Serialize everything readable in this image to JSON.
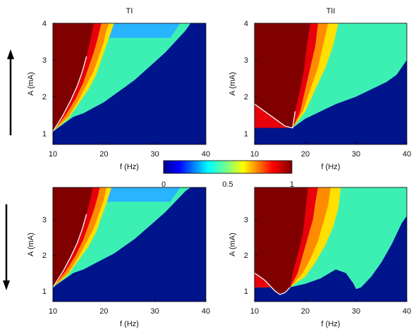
{
  "colors": {
    "background": "#00148c",
    "dark_red": "#800000",
    "red": "#e8000a",
    "orange": "#ff8c00",
    "yellow": "#ffe000",
    "cyan": "#3cf0b4",
    "light_blue": "#28b4ff",
    "boundary": "#f0f0f0"
  },
  "colorbar": {
    "colormap": "jet",
    "ticks": [
      "0",
      "0.5",
      "1"
    ],
    "tick_values": [
      0,
      0.5,
      1
    ]
  },
  "arrows": {
    "top_direction": "up",
    "bottom_direction": "down"
  },
  "chart_data": [
    {
      "type": "heatmap",
      "panel": "top-left",
      "title": "TI",
      "xlabel": "f (Hz)",
      "ylabel": "A (mA)",
      "xlim": [
        10,
        40
      ],
      "ylim": [
        0.7,
        4.0
      ],
      "xticks": [
        "10",
        "20",
        "30",
        "40"
      ],
      "yticks": [
        "1",
        "2",
        "3",
        "4"
      ],
      "regions": [
        {
          "value": 0.55,
          "color": "cyan",
          "boundary": [
            [
              10,
              1.05
            ],
            [
              12,
              1.25
            ],
            [
              14,
              1.45
            ],
            [
              16,
              1.55
            ],
            [
              18,
              1.7
            ],
            [
              20,
              1.85
            ],
            [
              22,
              2.05
            ],
            [
              24,
              2.25
            ],
            [
              26,
              2.45
            ],
            [
              28,
              2.7
            ],
            [
              30,
              2.95
            ],
            [
              32,
              3.2
            ],
            [
              34,
              3.5
            ],
            [
              36,
              3.8
            ],
            [
              37,
              4.0
            ]
          ]
        },
        {
          "value": 0.45,
          "color": "light_blue",
          "boundary": [
            [
              33,
              3.6
            ],
            [
              34.5,
              3.9
            ],
            [
              35,
              4.0
            ]
          ]
        },
        {
          "value": 0.72,
          "color": "yellow",
          "boundary": [
            [
              10,
              1.05
            ],
            [
              13,
              1.4
            ],
            [
              15,
              1.8
            ],
            [
              17,
              2.2
            ],
            [
              18.5,
              2.6
            ],
            [
              19.5,
              3.0
            ],
            [
              20.5,
              3.4
            ],
            [
              21.5,
              3.8
            ],
            [
              22,
              4.0
            ]
          ]
        },
        {
          "value": 0.82,
          "color": "orange",
          "boundary": [
            [
              10,
              1.05
            ],
            [
              13,
              1.45
            ],
            [
              15,
              1.9
            ],
            [
              16.5,
              2.3
            ],
            [
              18,
              2.7
            ],
            [
              19,
              3.1
            ],
            [
              20,
              3.5
            ],
            [
              20.5,
              3.8
            ],
            [
              21,
              4.0
            ]
          ]
        },
        {
          "value": 0.9,
          "color": "red",
          "boundary": [
            [
              10,
              1.05
            ],
            [
              12.5,
              1.5
            ],
            [
              14.5,
              1.95
            ],
            [
              16,
              2.4
            ],
            [
              17,
              2.8
            ],
            [
              18,
              3.2
            ],
            [
              18.8,
              3.6
            ],
            [
              19.5,
              4.0
            ]
          ]
        },
        {
          "value": 1.0,
          "color": "dark_red",
          "boundary": [
            [
              10,
              1.05
            ],
            [
              12,
              1.5
            ],
            [
              13.5,
              1.9
            ],
            [
              14.8,
              2.3
            ],
            [
              15.8,
              2.7
            ],
            [
              16.6,
              3.1
            ],
            [
              17.3,
              3.5
            ],
            [
              18,
              4.0
            ]
          ]
        }
      ]
    },
    {
      "type": "heatmap",
      "panel": "top-right",
      "title": "TII",
      "xlabel": "f (Hz)",
      "ylabel": "A (mA)",
      "xlim": [
        10,
        40
      ],
      "ylim": [
        0.7,
        4.0
      ],
      "xticks": [
        "10",
        "20",
        "30",
        "40"
      ],
      "yticks": [
        "1",
        "2",
        "3",
        "4"
      ],
      "regions": [
        {
          "value": 0.55,
          "color": "cyan",
          "boundary": [
            [
              10,
              1.8
            ],
            [
              12,
              1.6
            ],
            [
              14,
              1.4
            ],
            [
              16,
              1.2
            ],
            [
              17.5,
              1.15
            ],
            [
              20,
              1.4
            ],
            [
              23,
              1.6
            ],
            [
              26,
              1.8
            ],
            [
              30,
              2.0
            ],
            [
              33,
              2.2
            ],
            [
              36,
              2.4
            ],
            [
              38,
              2.6
            ],
            [
              39,
              2.8
            ],
            [
              40,
              3.0
            ]
          ]
        },
        {
          "value": 0.72,
          "color": "yellow",
          "boundary": [
            [
              17.5,
              1.15
            ],
            [
              20,
              1.6
            ],
            [
              22,
              2.2
            ],
            [
              24,
              2.8
            ],
            [
              25.5,
              3.4
            ],
            [
              26.5,
              4.0
            ]
          ]
        },
        {
          "value": 0.82,
          "color": "orange",
          "boundary": [
            [
              17.5,
              1.15
            ],
            [
              19.5,
              1.6
            ],
            [
              21,
              2.2
            ],
            [
              22.5,
              2.8
            ],
            [
              23.5,
              3.4
            ],
            [
              24.5,
              4.0
            ]
          ]
        },
        {
          "value": 0.9,
          "color": "red",
          "boundary": [
            [
              17.5,
              1.15
            ],
            [
              19,
              1.6
            ],
            [
              20,
              2.2
            ],
            [
              21,
              2.8
            ],
            [
              22,
              3.4
            ],
            [
              22.5,
              4.0
            ]
          ]
        },
        {
          "value": 1.0,
          "color": "dark_red",
          "boundary": [
            [
              10,
              1.8
            ],
            [
              12,
              1.6
            ],
            [
              14,
              1.4
            ],
            [
              16,
              1.2
            ],
            [
              17.5,
              1.15
            ],
            [
              18,
              1.6
            ],
            [
              19,
              2.2
            ],
            [
              19.8,
              2.8
            ],
            [
              20.3,
              3.4
            ],
            [
              21,
              4.0
            ]
          ]
        }
      ]
    },
    {
      "type": "heatmap",
      "panel": "bottom-left",
      "title": "",
      "xlabel": "f (Hz)",
      "ylabel": "A (mA)",
      "xlim": [
        10,
        40
      ],
      "ylim": [
        0.7,
        3.9
      ],
      "xticks": [
        "10",
        "20",
        "30",
        "40"
      ],
      "yticks": [
        "1",
        "2",
        "3"
      ],
      "regions": [
        {
          "value": 0.55,
          "color": "cyan",
          "boundary": [
            [
              10,
              1.1
            ],
            [
              12,
              1.3
            ],
            [
              14,
              1.5
            ],
            [
              16,
              1.6
            ],
            [
              18,
              1.75
            ],
            [
              20,
              1.9
            ],
            [
              22,
              2.05
            ],
            [
              24,
              2.25
            ],
            [
              26,
              2.45
            ],
            [
              28,
              2.7
            ],
            [
              30,
              2.95
            ],
            [
              32,
              3.2
            ],
            [
              34,
              3.5
            ],
            [
              36,
              3.8
            ],
            [
              37,
              3.9
            ]
          ]
        },
        {
          "value": 0.45,
          "color": "light_blue",
          "boundary": [
            [
              33,
              3.5
            ],
            [
              34.5,
              3.8
            ],
            [
              35,
              3.9
            ]
          ]
        },
        {
          "value": 0.72,
          "color": "yellow",
          "boundary": [
            [
              10,
              1.1
            ],
            [
              13,
              1.45
            ],
            [
              15,
              1.85
            ],
            [
              17,
              2.25
            ],
            [
              18.5,
              2.65
            ],
            [
              19.5,
              3.05
            ],
            [
              20.5,
              3.45
            ],
            [
              21.5,
              3.9
            ]
          ]
        },
        {
          "value": 0.82,
          "color": "orange",
          "boundary": [
            [
              10,
              1.1
            ],
            [
              13,
              1.5
            ],
            [
              15,
              1.95
            ],
            [
              16.5,
              2.35
            ],
            [
              18,
              2.75
            ],
            [
              19,
              3.15
            ],
            [
              20,
              3.55
            ],
            [
              20.5,
              3.9
            ]
          ]
        },
        {
          "value": 0.9,
          "color": "red",
          "boundary": [
            [
              10,
              1.1
            ],
            [
              12.5,
              1.55
            ],
            [
              14.5,
              2.0
            ],
            [
              16,
              2.45
            ],
            [
              17,
              2.85
            ],
            [
              18,
              3.25
            ],
            [
              18.8,
              3.65
            ],
            [
              19.2,
              3.9
            ]
          ]
        },
        {
          "value": 1.0,
          "color": "dark_red",
          "boundary": [
            [
              10,
              1.1
            ],
            [
              12,
              1.55
            ],
            [
              13.5,
              1.95
            ],
            [
              14.8,
              2.35
            ],
            [
              15.8,
              2.75
            ],
            [
              16.6,
              3.15
            ],
            [
              17.3,
              3.55
            ],
            [
              17.8,
              3.9
            ]
          ]
        }
      ]
    },
    {
      "type": "heatmap",
      "panel": "bottom-right",
      "title": "",
      "xlabel": "f (Hz)",
      "ylabel": "A (mA)",
      "xlim": [
        10,
        40
      ],
      "ylim": [
        0.7,
        3.9
      ],
      "xticks": [
        "10",
        "20",
        "30",
        "40"
      ],
      "yticks": [
        "1",
        "2",
        "3"
      ],
      "regions": [
        {
          "value": 0.55,
          "color": "cyan",
          "boundary": [
            [
              10,
              1.5
            ],
            [
              12,
              1.3
            ],
            [
              14,
              1.0
            ],
            [
              15,
              0.9
            ],
            [
              16,
              0.95
            ],
            [
              17,
              1.1
            ],
            [
              20,
              1.2
            ],
            [
              23,
              1.35
            ],
            [
              26,
              1.6
            ],
            [
              28,
              1.5
            ],
            [
              29.5,
              1.2
            ],
            [
              30,
              1.05
            ],
            [
              31,
              1.1
            ],
            [
              33,
              1.4
            ],
            [
              35,
              1.8
            ],
            [
              37,
              2.3
            ],
            [
              39,
              2.9
            ],
            [
              40,
              3.1
            ]
          ]
        },
        {
          "value": 0.72,
          "color": "yellow",
          "boundary": [
            [
              17,
              1.1
            ],
            [
              20,
              1.4
            ],
            [
              22,
              1.8
            ],
            [
              24,
              2.3
            ],
            [
              25.5,
              2.8
            ],
            [
              26.5,
              3.3
            ],
            [
              27,
              3.9
            ]
          ]
        },
        {
          "value": 0.82,
          "color": "orange",
          "boundary": [
            [
              17,
              1.1
            ],
            [
              19.5,
              1.5
            ],
            [
              21,
              1.9
            ],
            [
              22.5,
              2.4
            ],
            [
              23.5,
              2.9
            ],
            [
              24.5,
              3.4
            ],
            [
              25,
              3.9
            ]
          ]
        },
        {
          "value": 0.9,
          "color": "red",
          "boundary": [
            [
              17,
              1.1
            ],
            [
              18.5,
              1.5
            ],
            [
              19.5,
              2.0
            ],
            [
              20.5,
              2.5
            ],
            [
              21.5,
              3.0
            ],
            [
              22,
              3.5
            ],
            [
              22.5,
              3.9
            ]
          ]
        },
        {
          "value": 1.0,
          "color": "dark_red",
          "boundary": [
            [
              10,
              1.5
            ],
            [
              12,
              1.3
            ],
            [
              14,
              1.0
            ],
            [
              15,
              0.9
            ],
            [
              16,
              0.95
            ],
            [
              17,
              1.1
            ],
            [
              17.5,
              1.5
            ],
            [
              18.5,
              2.0
            ],
            [
              19.5,
              2.6
            ],
            [
              20,
              3.2
            ],
            [
              20.5,
              3.9
            ]
          ]
        }
      ]
    }
  ]
}
